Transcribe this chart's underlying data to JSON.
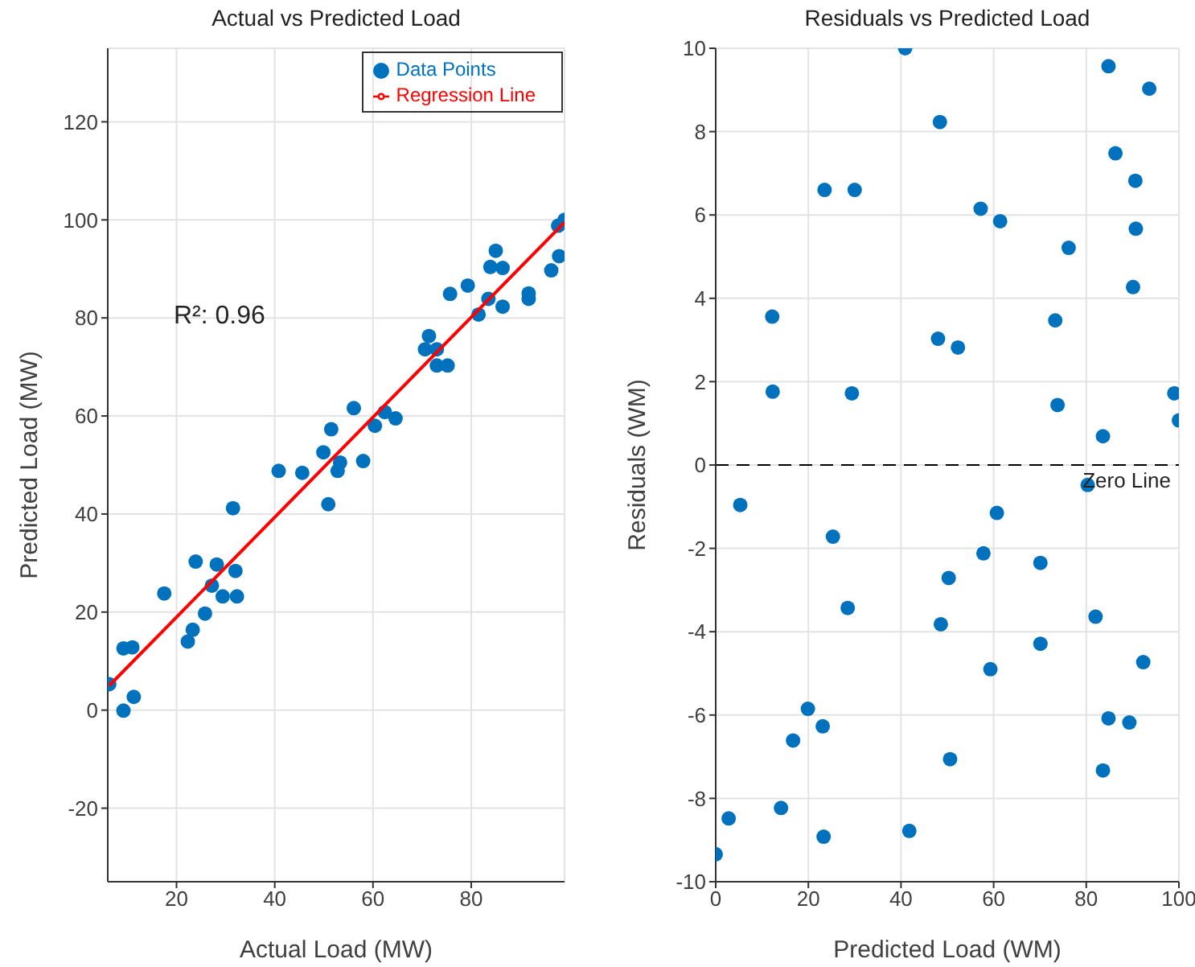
{
  "chart_data": [
    {
      "type": "scatter",
      "title": "Actual vs Predicted Load",
      "xlabel": "Actual Load (MW)",
      "ylabel": "Predicted Load (MW)",
      "xlim": [
        6,
        99
      ],
      "xticks": [
        20,
        40,
        60,
        80
      ],
      "ylim": [
        -35,
        135
      ],
      "yticks": [
        -20,
        0,
        20,
        40,
        60,
        80,
        100,
        120
      ],
      "grid": true,
      "legend": "top right",
      "annotations": [
        "R²: 0.96"
      ],
      "series": [
        {
          "name": "Data Points",
          "type": "scatter",
          "marker": "circle",
          "color": "#0072bd",
          "x": [
            99,
            97.7,
            97.9,
            96.3,
            85,
            83.9,
            86.4,
            86.4,
            83.5,
            81.5,
            79.3,
            75.7,
            91.7,
            91.7,
            71.4,
            70.6,
            73,
            73,
            75.2,
            56.1,
            62.4,
            64.6,
            60.4,
            51.5,
            49.9,
            53.3,
            52.8,
            58,
            40.8,
            45.6,
            50.9,
            31.5,
            23.9,
            28.2,
            32,
            27.2,
            17.5,
            29.4,
            32.3,
            25.8,
            23.3,
            22.3,
            9.2,
            11,
            6.3,
            11.3,
            9.2
          ],
          "values": [
            100,
            98.8,
            92.6,
            89.7,
            93.7,
            90.4,
            90.2,
            82.3,
            83.9,
            80.7,
            86.6,
            84.9,
            85,
            83.9,
            76.3,
            73.6,
            73.6,
            70.3,
            70.3,
            61.6,
            60.8,
            59.5,
            58,
            57.3,
            52.6,
            50.5,
            48.8,
            50.8,
            48.8,
            48.4,
            42,
            41.2,
            30.3,
            29.7,
            28.4,
            25.4,
            23.8,
            23.2,
            23.2,
            19.7,
            16.4,
            14,
            12.6,
            12.8,
            5.3,
            2.7,
            -0.1
          ]
        },
        {
          "name": "Regression Line",
          "type": "line",
          "marker": "none",
          "line_style": "solid",
          "color": "#ff0000",
          "x": [
            6.3,
            99
          ],
          "values": [
            5,
            99.5
          ]
        }
      ]
    },
    {
      "type": "scatter",
      "title": "Residuals vs Predicted Load",
      "xlabel": "Predicted Load (WM)",
      "ylabel": "Residuals (WM)",
      "xlim": [
        0,
        100
      ],
      "xticks": [
        0,
        20,
        40,
        60,
        80,
        100
      ],
      "ylim": [
        -10,
        10
      ],
      "yticks": [
        -10,
        -8,
        -6,
        -4,
        -2,
        0,
        2,
        4,
        6,
        8,
        10
      ],
      "grid": true,
      "legend": false,
      "ref_lines": [
        {
          "axis": "y",
          "value": 0,
          "label": "Zero Line",
          "color": "#000000",
          "line_style": "dashed"
        }
      ],
      "series": [
        {
          "type": "scatter",
          "marker": "circle",
          "color": "#0072bd",
          "x": [
            40.9,
            84.8,
            93.6,
            48.4,
            86.3,
            90.6,
            23.5,
            30,
            57.2,
            61.4,
            90.7,
            76.2,
            90.1,
            12.2,
            73.3,
            48,
            52.3,
            12.3,
            29.4,
            99,
            73.8,
            100,
            83.6,
            80.3,
            5.3,
            60.7,
            25.3,
            57.8,
            70.1,
            50.3,
            28.5,
            82,
            48.6,
            70.1,
            92.3,
            59.3,
            19.9,
            23.1,
            84.8,
            89.3,
            16.7,
            50.6,
            83.6,
            14.1,
            2.8,
            23.3,
            41.8,
            0
          ],
          "values": [
            10,
            9.57,
            9.03,
            8.23,
            7.48,
            6.82,
            6.6,
            6.6,
            6.15,
            5.85,
            5.67,
            5.21,
            4.27,
            3.56,
            3.47,
            3.03,
            2.82,
            1.76,
            1.72,
            1.72,
            1.44,
            1.07,
            0.69,
            -0.48,
            -0.96,
            -1.15,
            -1.72,
            -2.12,
            -2.35,
            -2.71,
            -3.43,
            -3.64,
            -3.82,
            -4.29,
            -4.73,
            -4.9,
            -5.85,
            -6.27,
            -6.08,
            -6.18,
            -6.61,
            -7.06,
            -7.33,
            -8.23,
            -8.48,
            -8.92,
            -8.78,
            -9.34
          ]
        }
      ]
    }
  ]
}
